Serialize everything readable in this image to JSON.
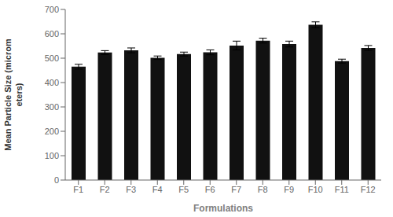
{
  "chart_data": {
    "type": "bar",
    "categories": [
      "F1",
      "F2",
      "F3",
      "F4",
      "F5",
      "F6",
      "F7",
      "F8",
      "F9",
      "F10",
      "F11",
      "F12"
    ],
    "values": [
      465,
      523,
      532,
      502,
      517,
      524,
      552,
      572,
      558,
      637,
      488,
      542
    ],
    "errors": [
      10,
      8,
      10,
      7,
      8,
      10,
      18,
      10,
      12,
      12,
      8,
      10
    ],
    "color": "#111111",
    "xlabel": "Formulations",
    "ylabel": "Mean Particle Size (microm\neters)",
    "ylim": [
      0,
      700
    ],
    "yticks": [
      0,
      100,
      200,
      300,
      400,
      500,
      600,
      700
    ],
    "grid": false
  }
}
